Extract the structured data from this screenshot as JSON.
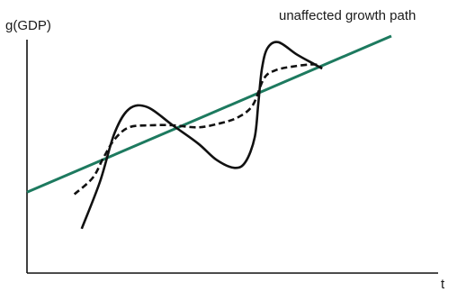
{
  "chart_data": {
    "type": "line",
    "xlabel": "t",
    "ylabel": "g(GDP)",
    "annotations": [
      {
        "text": "unaffected growth path",
        "target": "trend"
      }
    ],
    "grid": false,
    "legend": "none",
    "colors": {
      "trend": "#1d7a5f",
      "curves": "#111111",
      "axes": "#111111"
    },
    "series": [
      {
        "key": "trend",
        "style": "solid",
        "points": [
          [
            0.0,
            0.23
          ],
          [
            1.0,
            1.0
          ]
        ]
      },
      {
        "key": "cycle_solid",
        "style": "solid",
        "points": [
          [
            0.15,
            0.05
          ],
          [
            0.2,
            0.28
          ],
          [
            0.24,
            0.52
          ],
          [
            0.28,
            0.64
          ],
          [
            0.33,
            0.65
          ],
          [
            0.4,
            0.56
          ],
          [
            0.47,
            0.47
          ],
          [
            0.52,
            0.39
          ],
          [
            0.57,
            0.35
          ],
          [
            0.6,
            0.38
          ],
          [
            0.625,
            0.5
          ],
          [
            0.635,
            0.67
          ],
          [
            0.645,
            0.84
          ],
          [
            0.66,
            0.94
          ],
          [
            0.69,
            0.97
          ],
          [
            0.74,
            0.91
          ],
          [
            0.79,
            0.86
          ],
          [
            0.81,
            0.84
          ]
        ]
      },
      {
        "key": "cycle_dashed",
        "style": "dashed",
        "points": [
          [
            0.13,
            0.22
          ],
          [
            0.18,
            0.3
          ],
          [
            0.21,
            0.4
          ],
          [
            0.24,
            0.49
          ],
          [
            0.28,
            0.55
          ],
          [
            0.34,
            0.56
          ],
          [
            0.4,
            0.56
          ],
          [
            0.47,
            0.55
          ],
          [
            0.53,
            0.57
          ],
          [
            0.58,
            0.6
          ],
          [
            0.62,
            0.66
          ],
          [
            0.65,
            0.79
          ],
          [
            0.68,
            0.83
          ],
          [
            0.73,
            0.85
          ],
          [
            0.79,
            0.86
          ],
          [
            0.81,
            0.84
          ]
        ]
      }
    ]
  }
}
